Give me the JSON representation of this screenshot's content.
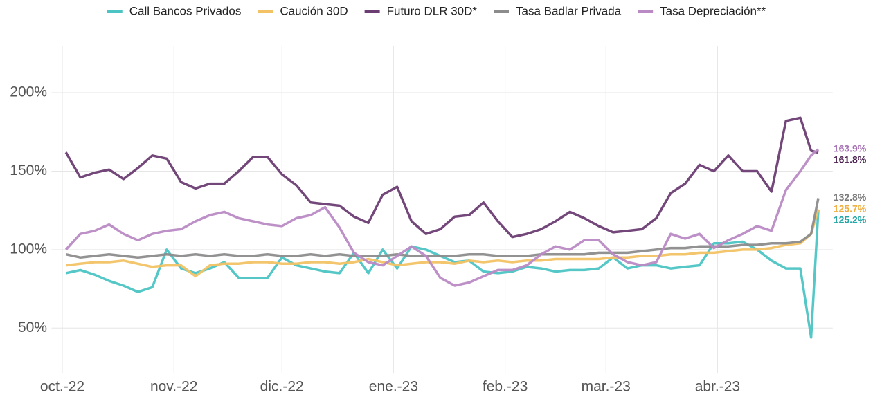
{
  "chart_data": {
    "type": "line",
    "x": [
      1,
      5,
      9,
      13,
      17,
      21,
      25,
      29,
      33,
      37,
      41,
      45,
      49,
      53,
      57,
      61,
      65,
      69,
      73,
      77,
      81,
      85,
      89,
      93,
      97,
      101,
      105,
      109,
      113,
      117,
      121,
      125,
      129,
      133,
      137,
      141,
      145,
      149,
      153,
      157,
      161,
      165,
      169,
      173,
      177,
      181,
      185,
      189,
      193,
      197,
      201,
      205,
      208,
      210
    ],
    "series": [
      {
        "name": "Call Bancos Privados",
        "color": "#4cc4c4",
        "label_color": "#22a6a6",
        "end_label": "125.2%",
        "values": [
          85,
          87,
          84,
          80,
          77,
          73,
          76,
          100,
          88,
          85,
          88,
          92,
          82,
          82,
          82,
          95,
          90,
          88,
          86,
          85,
          98,
          85,
          100,
          88,
          102,
          100,
          96,
          92,
          93,
          86,
          85,
          86,
          89,
          88,
          86,
          87,
          87,
          88,
          95,
          88,
          90,
          90,
          88,
          89,
          90,
          104,
          104,
          105,
          100,
          93,
          88,
          88,
          44,
          125.2
        ]
      },
      {
        "name": "Caución 30D",
        "color": "#f2c265",
        "label_color": "#f0b040",
        "end_label": "125.7%",
        "values": [
          90,
          91,
          92,
          92,
          93,
          91,
          89,
          90,
          90,
          83,
          90,
          91,
          91,
          92,
          92,
          91,
          91,
          92,
          92,
          91,
          92,
          94,
          92,
          90,
          91,
          92,
          92,
          91,
          93,
          92,
          93,
          92,
          93,
          93,
          94,
          94,
          94,
          94,
          95,
          95,
          96,
          96,
          97,
          97,
          98,
          98,
          99,
          100,
          100,
          101,
          103,
          104,
          110,
          125.7
        ]
      },
      {
        "name": "Futuro DLR 30D*",
        "color": "#6b3d73",
        "label_color": "#4a1f50",
        "end_label": "161.8%",
        "values": [
          162,
          146,
          149,
          151,
          145,
          152,
          160,
          158,
          143,
          139,
          142,
          142,
          150,
          159,
          159,
          148,
          141,
          130,
          129,
          128,
          121,
          117,
          135,
          140,
          118,
          110,
          113,
          121,
          122,
          130,
          118,
          108,
          110,
          113,
          118,
          124,
          120,
          115,
          111,
          112,
          113,
          120,
          136,
          142,
          154,
          150,
          160,
          150,
          150,
          137,
          182,
          184,
          163,
          161.8
        ]
      },
      {
        "name": "Tasa Badlar Privada",
        "color": "#8c8c8c",
        "label_color": "#7a7a7a",
        "end_label": "132.8%",
        "values": [
          97,
          95,
          96,
          97,
          96,
          95,
          96,
          97,
          96,
          97,
          96,
          97,
          96,
          96,
          97,
          96,
          96,
          97,
          96,
          97,
          96,
          96,
          96,
          97,
          96,
          96,
          96,
          96,
          97,
          97,
          96,
          96,
          96,
          97,
          97,
          97,
          97,
          98,
          98,
          98,
          99,
          100,
          101,
          101,
          102,
          102,
          102,
          103,
          103,
          104,
          104,
          105,
          110,
          132.8
        ]
      },
      {
        "name": "Tasa Depreciación**",
        "color": "#b98ac4",
        "label_color": "#a66fb5",
        "end_label": "163.9%",
        "values": [
          100,
          110,
          112,
          116,
          110,
          106,
          110,
          112,
          113,
          118,
          122,
          124,
          120,
          118,
          116,
          115,
          120,
          122,
          127,
          114,
          98,
          92,
          90,
          96,
          102,
          96,
          82,
          77,
          79,
          83,
          87,
          87,
          90,
          97,
          102,
          100,
          106,
          106,
          97,
          92,
          90,
          92,
          110,
          107,
          110,
          101,
          106,
          110,
          115,
          112,
          138,
          150,
          160,
          163.9
        ]
      }
    ],
    "xlim": [
      -3,
      214
    ],
    "xticks": [
      {
        "value": 0,
        "label": "oct.-22"
      },
      {
        "value": 31,
        "label": "nov.-22"
      },
      {
        "value": 61,
        "label": "dic.-22"
      },
      {
        "value": 92,
        "label": "ene.-23"
      },
      {
        "value": 123,
        "label": "feb.-23"
      },
      {
        "value": 151,
        "label": "mar.-23"
      },
      {
        "value": 182,
        "label": "abr.-23"
      }
    ],
    "ylim": [
      25,
      230
    ],
    "yticks": [
      {
        "value": 50,
        "label": "50%"
      },
      {
        "value": 100,
        "label": "100%"
      },
      {
        "value": 150,
        "label": "150%"
      },
      {
        "value": 200,
        "label": "200%"
      }
    ],
    "grid": true,
    "legend": "top"
  }
}
